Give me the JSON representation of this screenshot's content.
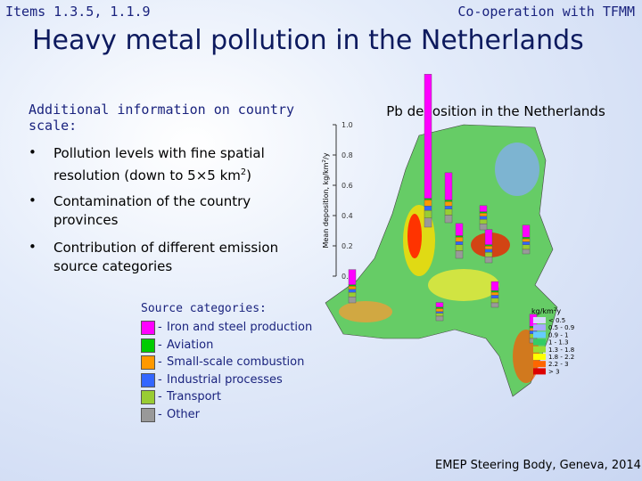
{
  "header": {
    "left": "Items 1.3.5, 1.1.9",
    "right": "Co-operation with TFMM",
    "title": "Heavy metal pollution in the Netherlands"
  },
  "panel": {
    "heading": "Additional information on country scale:",
    "bullets": [
      {
        "text": "Pollution levels with fine spatial resolution (down to 5×5 km",
        "sup": "2",
        "tail": ")"
      },
      {
        "text": "Contamination of the country provinces"
      },
      {
        "text": "Contribution of different emission source categories"
      }
    ],
    "sources_heading": "Source categories:"
  },
  "chart_data": {
    "type": "bar",
    "title": "Pb deposition in the Netherlands",
    "y_label": {
      "text": "Mean deposition, kg/km",
      "sup": "2",
      "tail": "/y"
    },
    "ylim": [
      0,
      1.0
    ],
    "yticks": [
      {
        "value": 0,
        "label": "0.0"
      },
      0.2,
      0.4,
      0.6,
      0.8,
      {
        "value": 1,
        "label": "1.0"
      }
    ],
    "categories": [
      null,
      null,
      null,
      null,
      null,
      null,
      null,
      null,
      null,
      null
    ],
    "series": [
      {
        "name": "Iron and steel production",
        "color": "#ff00ff",
        "values": [
          0.82,
          0.18,
          0.08,
          0.1,
          0.04,
          0.08,
          0.06,
          0.08,
          0.1,
          0.03
        ]
      },
      {
        "name": "Aviation",
        "color": "#00cc00",
        "values": [
          0.01,
          0.01,
          0.01,
          0.01,
          0.01,
          0.01,
          0.01,
          0.01,
          0.01,
          0.01
        ]
      },
      {
        "name": "Small-scale combustion",
        "color": "#ff9900",
        "values": [
          0.04,
          0.03,
          0.03,
          0.02,
          0.02,
          0.02,
          0.02,
          0.02,
          0.02,
          0.02
        ]
      },
      {
        "name": "Industrial processes",
        "color": "#3366ff",
        "values": [
          0.03,
          0.02,
          0.02,
          0.02,
          0.02,
          0.02,
          0.02,
          0.02,
          0.02,
          0.01
        ]
      },
      {
        "name": "Transport",
        "color": "#99cc33",
        "values": [
          0.05,
          0.04,
          0.04,
          0.03,
          0.03,
          0.03,
          0.03,
          0.03,
          0.03,
          0.02
        ]
      },
      {
        "name": "Other",
        "color": "#999999",
        "values": [
          0.06,
          0.05,
          0.05,
          0.04,
          0.04,
          0.03,
          0.03,
          0.03,
          0.04,
          0.03
        ]
      }
    ]
  },
  "map_legend": {
    "unit": {
      "text": "kg/km",
      "sup": "2",
      "tail": "y"
    },
    "items": [
      {
        "label": "< 0.5",
        "color": "#d8d8ff"
      },
      {
        "label": "0.5 - 0.9",
        "color": "#a8a8ff"
      },
      {
        "label": "0.9 - 1",
        "color": "#66ccff"
      },
      {
        "label": "1 - 1.3",
        "color": "#33cc66"
      },
      {
        "label": "1.3 - 1.8",
        "color": "#99dd33"
      },
      {
        "label": "1.8 - 2.2",
        "color": "#ffff00"
      },
      {
        "label": "2.2 - 3",
        "color": "#ff6600"
      },
      {
        "label": "> 3",
        "color": "#dd0000"
      }
    ]
  },
  "footer": "EMEP Steering Body, Geneva, 2014"
}
